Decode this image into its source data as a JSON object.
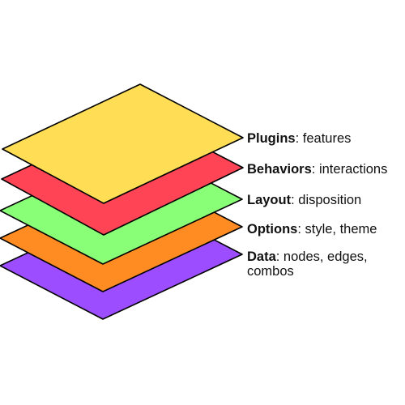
{
  "diagram": {
    "layers": [
      {
        "key": "data",
        "strong": "Data",
        "desc": ": nodes, edges,",
        "desc2": "combos",
        "color": "#9b4dff"
      },
      {
        "key": "options",
        "strong": "Options",
        "desc": ": style, theme",
        "desc2": "",
        "color": "#ff8c22"
      },
      {
        "key": "layout",
        "strong": "Layout",
        "desc": ": disposition",
        "desc2": "",
        "color": "#88ff77"
      },
      {
        "key": "behaviors",
        "strong": "Behaviors",
        "desc": ": interactions",
        "desc2": "",
        "color": "#ff4455"
      },
      {
        "key": "plugins",
        "strong": "Plugins",
        "desc": ": features",
        "desc2": "",
        "color": "#ffdd55"
      }
    ]
  }
}
